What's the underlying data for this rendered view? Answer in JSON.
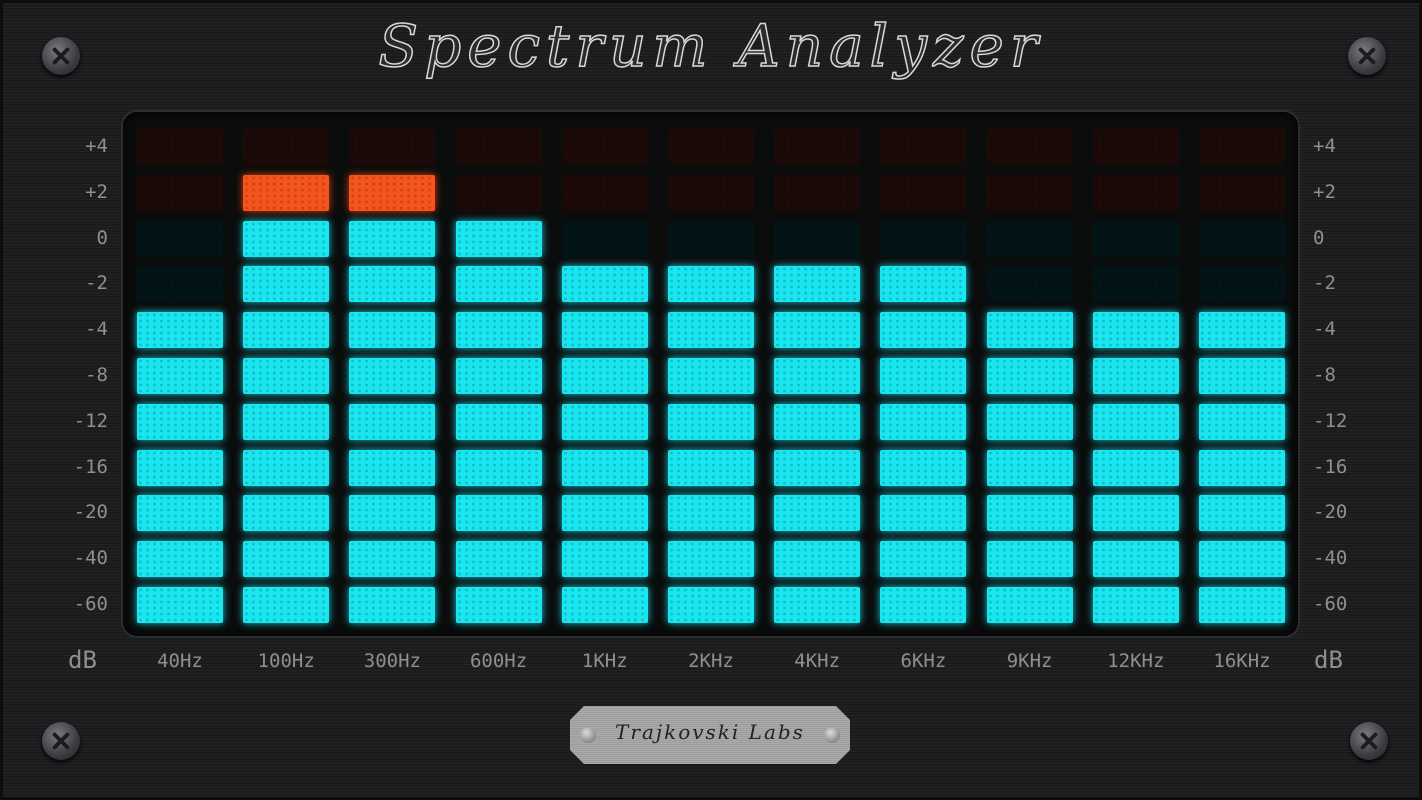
{
  "title": "Spectrum Analyzer",
  "brand": "Trajkovski Labs",
  "unit_label": "dB",
  "scale": [
    "+4",
    "+2",
    "0",
    "-2",
    "-4",
    "-8",
    "-12",
    "-16",
    "-20",
    "-40",
    "-60"
  ],
  "red_zone_rows": 2,
  "bands": [
    {
      "label": "40Hz",
      "lit_segments": 7
    },
    {
      "label": "100Hz",
      "lit_segments": 10
    },
    {
      "label": "300Hz",
      "lit_segments": 10
    },
    {
      "label": "600Hz",
      "lit_segments": 9
    },
    {
      "label": "1KHz",
      "lit_segments": 8
    },
    {
      "label": "2KHz",
      "lit_segments": 8
    },
    {
      "label": "4KHz",
      "lit_segments": 8
    },
    {
      "label": "6KHz",
      "lit_segments": 8
    },
    {
      "label": "9KHz",
      "lit_segments": 7
    },
    {
      "label": "12KHz",
      "lit_segments": 7
    },
    {
      "label": "16KHz",
      "lit_segments": 7
    }
  ],
  "colors": {
    "segment_on": "#1ae6f0",
    "segment_peak": "#f5551c",
    "background": "#1c1d1f"
  }
}
